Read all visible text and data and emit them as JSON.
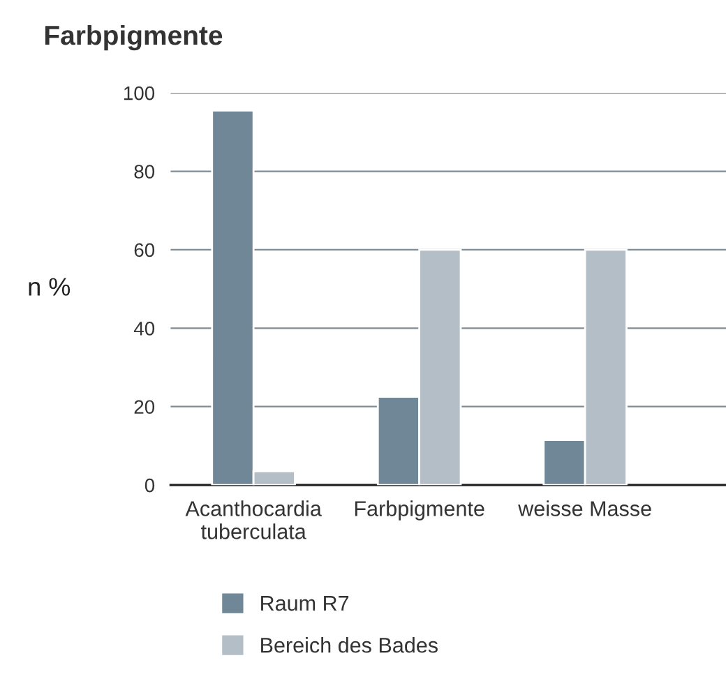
{
  "chart_data": {
    "type": "bar",
    "title": "Farbpigmente",
    "ylabel": "n %",
    "categories": [
      "Acanthocardia\ntuberculata",
      "Farbpigmente",
      "weisse Masse"
    ],
    "series": [
      {
        "name": "Raum R7",
        "color": "#6f8797",
        "values": [
          95.5,
          22.5,
          11.5
        ]
      },
      {
        "name": "Bereich des Bades",
        "color": "#b3bec6",
        "values": [
          3.5,
          60,
          60
        ]
      }
    ],
    "ylim": [
      0,
      100
    ],
    "yticks": [
      0,
      20,
      40,
      60,
      80,
      100
    ],
    "grid": "y",
    "legend": "bottom"
  }
}
